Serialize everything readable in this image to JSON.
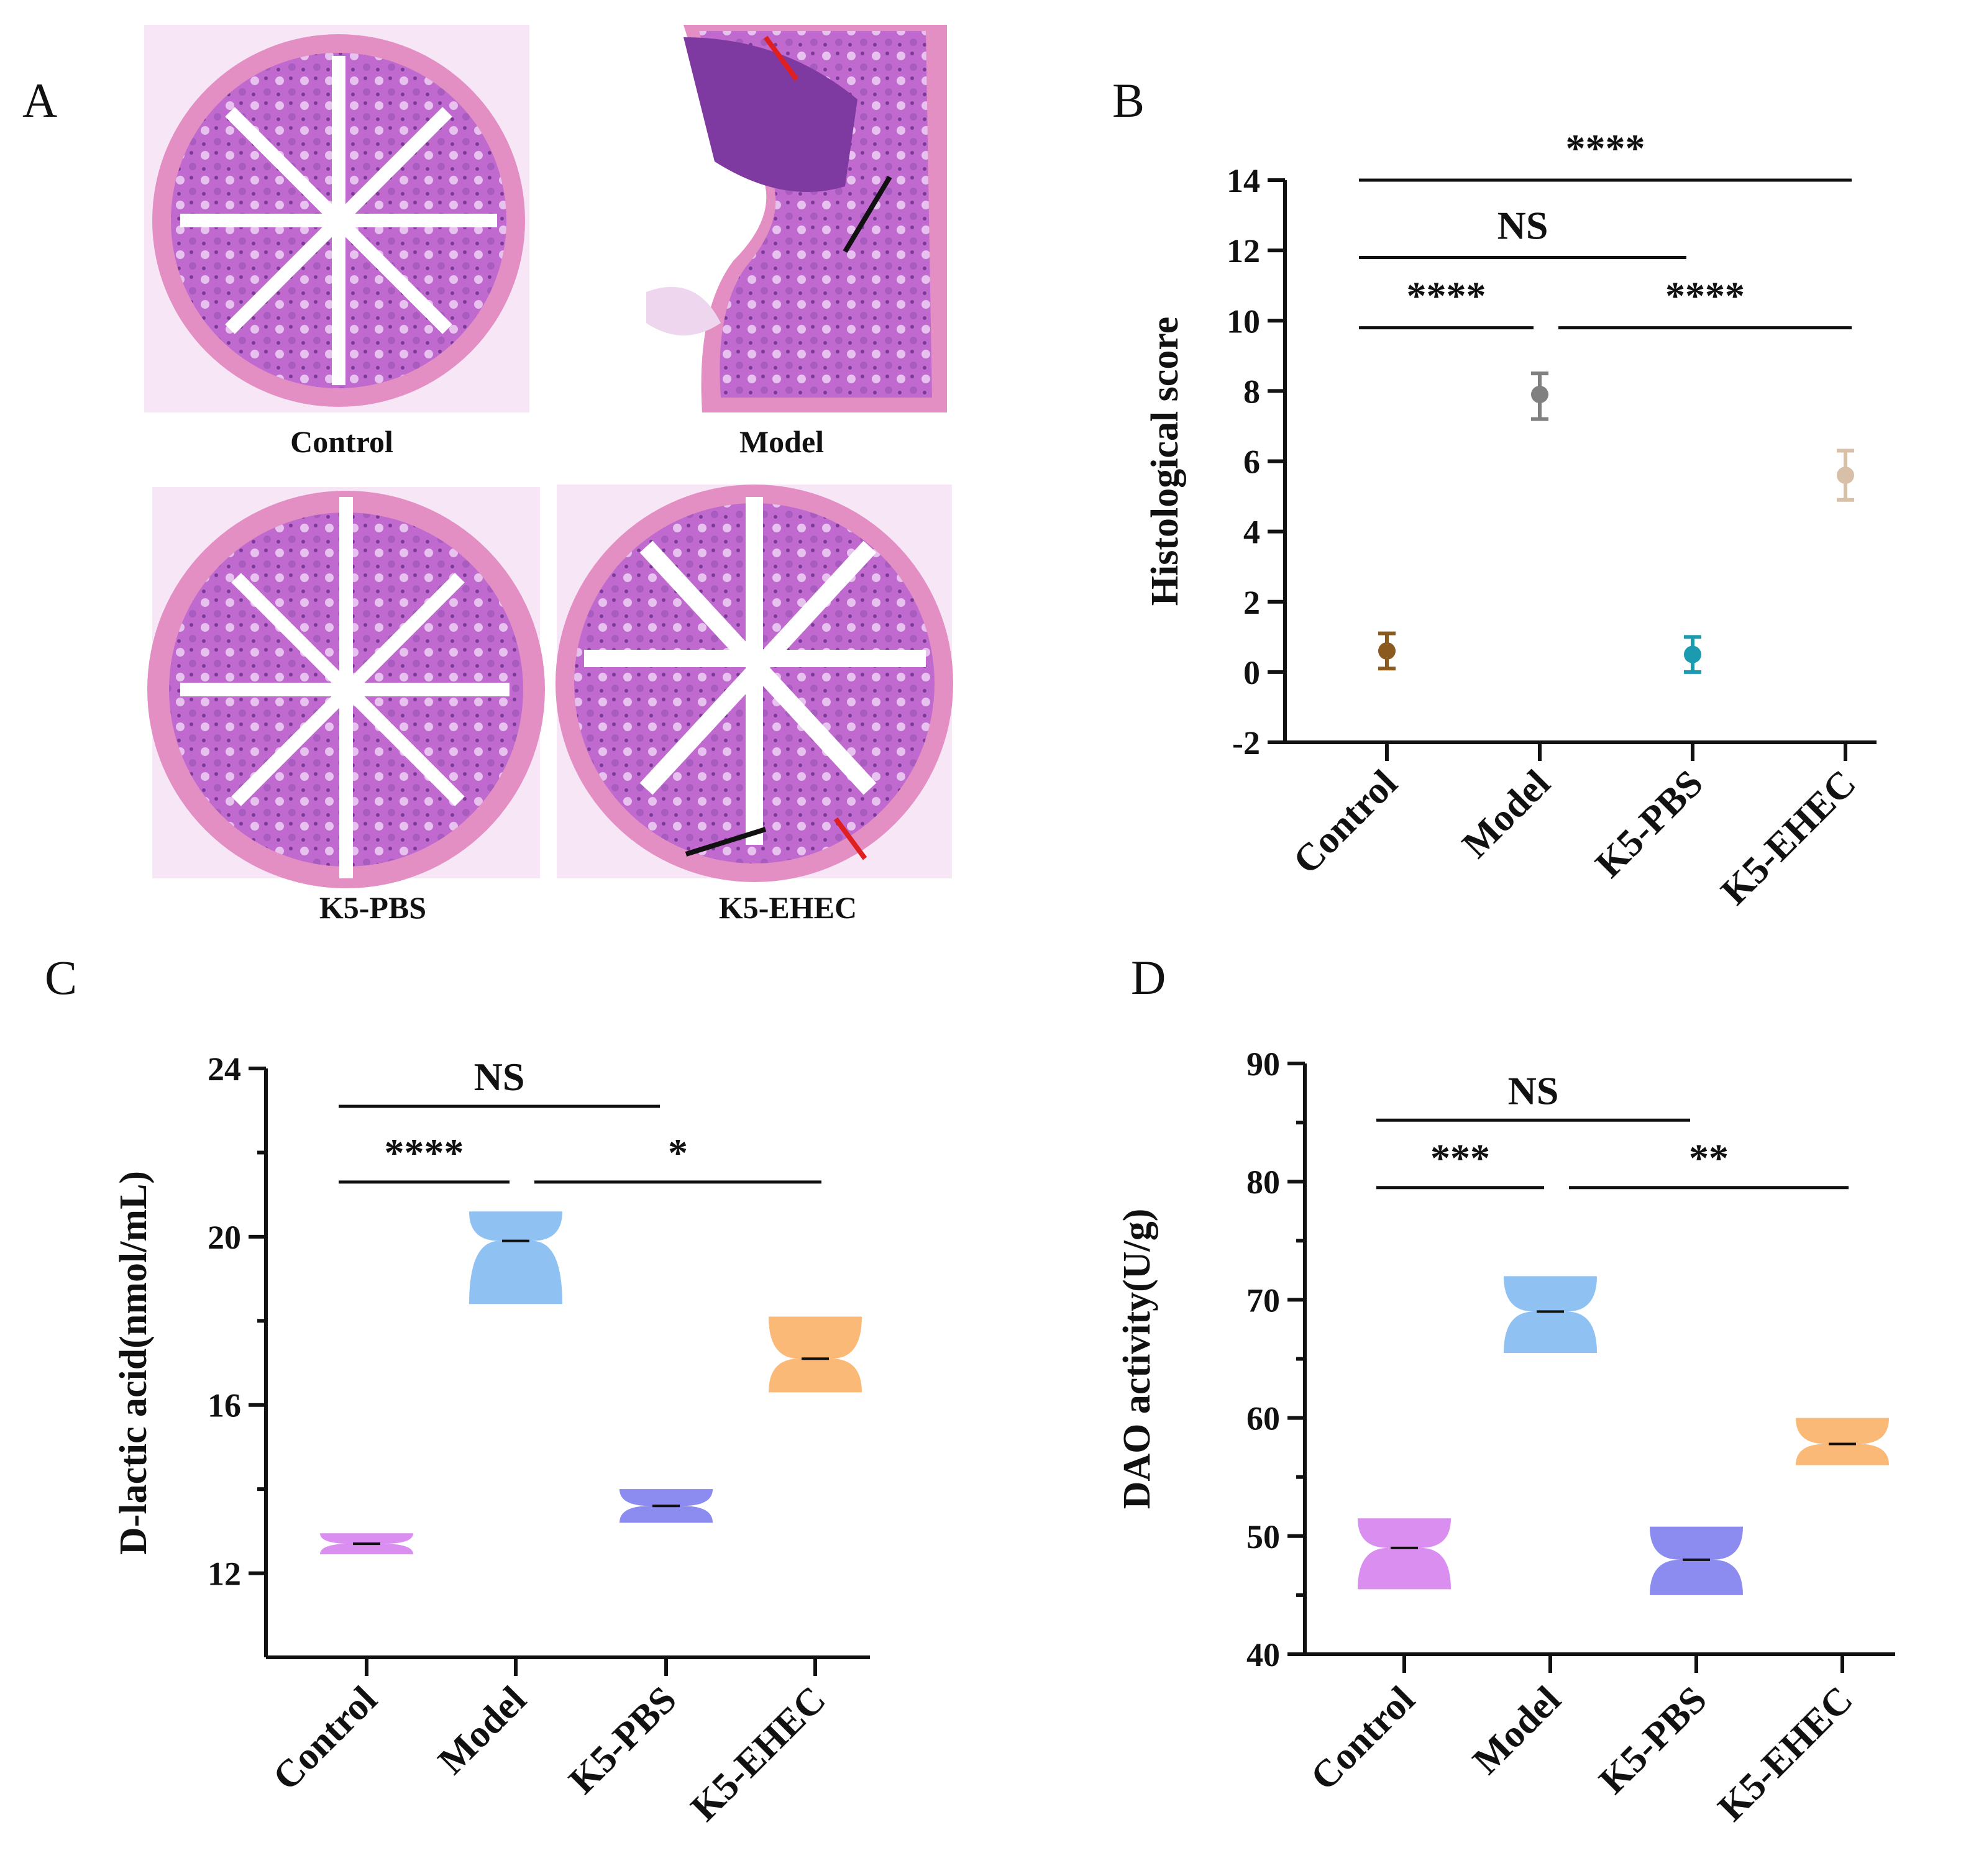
{
  "panels": {
    "a": {
      "letter": "A",
      "labels": [
        "Control",
        "Model",
        "K5-PBS",
        "K5-EHEC"
      ]
    },
    "b": {
      "letter": "B"
    },
    "c": {
      "letter": "C"
    },
    "d": {
      "letter": "D"
    }
  },
  "colors": {
    "violin_purple": "#d98ef0",
    "violin_blue": "#8fc1f2",
    "violin_indigo": "#8c8cf0",
    "violin_orange": "#fbb977",
    "control_b": "#8b5a1e",
    "model_b": "#808080",
    "k5pbs_b": "#1a9bb0",
    "k5ehec_b": "#d8bfa8",
    "tissue": "#c06ad0"
  },
  "chart_data": [
    {
      "panel": "B",
      "type": "scatter",
      "title": "",
      "xlabel": "",
      "ylabel": "Histological score",
      "categories": [
        "Control",
        "Model",
        "K5-PBS",
        "K5-EHEC"
      ],
      "values": [
        0.6,
        7.9,
        0.5,
        5.6
      ],
      "error_low": [
        0.1,
        7.2,
        0.0,
        4.9
      ],
      "error_high": [
        1.1,
        8.5,
        1.0,
        6.3
      ],
      "ylim": [
        -2,
        14
      ],
      "yticks": [
        -2,
        0,
        2,
        4,
        6,
        8,
        10,
        12,
        14
      ],
      "significance": [
        {
          "from": 0,
          "to": 3,
          "label": "****",
          "level": 14
        },
        {
          "from": 0,
          "to": 2,
          "label": "NS",
          "level": 11.8
        },
        {
          "from": 0,
          "to": 1,
          "label": "****",
          "level": 9.8
        },
        {
          "from": 1,
          "to": 3,
          "label": "****",
          "level": 9.8
        }
      ]
    },
    {
      "panel": "C",
      "type": "violin",
      "title": "",
      "xlabel": "",
      "ylabel": "D-lactic acid(nmol/mL)",
      "categories": [
        "Control",
        "Model",
        "K5-PBS",
        "K5-EHEC"
      ],
      "median": [
        12.7,
        19.9,
        13.6,
        17.1
      ],
      "min": [
        12.45,
        18.4,
        13.2,
        16.3
      ],
      "max": [
        12.95,
        20.6,
        14.0,
        18.1
      ],
      "ylim": [
        10,
        24
      ],
      "yticks": [
        12,
        16,
        20,
        24
      ],
      "significance": [
        {
          "from": 0,
          "to": 2,
          "label": "NS",
          "level": 23.1
        },
        {
          "from": 0,
          "to": 1,
          "label": "****",
          "level": 21.3
        },
        {
          "from": 1,
          "to": 3,
          "label": "*",
          "level": 21.3
        }
      ]
    },
    {
      "panel": "D",
      "type": "violin",
      "title": "",
      "xlabel": "",
      "ylabel": "DAO activity(U/g)",
      "categories": [
        "Control",
        "Model",
        "K5-PBS",
        "K5-EHEC"
      ],
      "median": [
        49,
        69,
        48,
        57.8
      ],
      "min": [
        45.5,
        65.5,
        45.0,
        56.0
      ],
      "max": [
        51.5,
        72.0,
        50.8,
        60.0
      ],
      "ylim": [
        40,
        90
      ],
      "yticks": [
        40,
        50,
        60,
        70,
        80,
        90
      ],
      "significance": [
        {
          "from": 0,
          "to": 2,
          "label": "NS",
          "level": 85.2
        },
        {
          "from": 0,
          "to": 1,
          "label": "***",
          "level": 79.5
        },
        {
          "from": 1,
          "to": 3,
          "label": "**",
          "level": 79.5
        }
      ]
    }
  ]
}
